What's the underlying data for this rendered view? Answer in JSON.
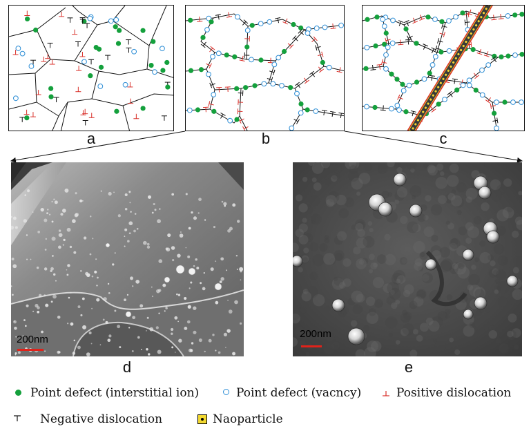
{
  "panels": {
    "a": "a",
    "b": "b",
    "c": "c",
    "d": "d",
    "e": "e"
  },
  "scale_bars": {
    "d": "200nm",
    "e": "200nm"
  },
  "legend": {
    "interstitial": "Point defect (interstitial ion)",
    "vacancy": "Point defect (vacncy)",
    "positive": "Positive dislocation",
    "negative": "Negative dislocation",
    "nanoparticle": "Naoparticle"
  },
  "colors": {
    "interstitial": "#14a03c",
    "vacancy": "#2d8ed6",
    "positive": "#d9302a",
    "negative": "#111111",
    "nanoparticle": "#f2d830"
  },
  "icons": {
    "interstitial": "green-dot-icon",
    "vacancy": "blue-circle-icon",
    "positive": "positive-dislocation-icon",
    "negative": "negative-dislocation-icon",
    "nanoparticle": "nanoparticle-icon"
  }
}
